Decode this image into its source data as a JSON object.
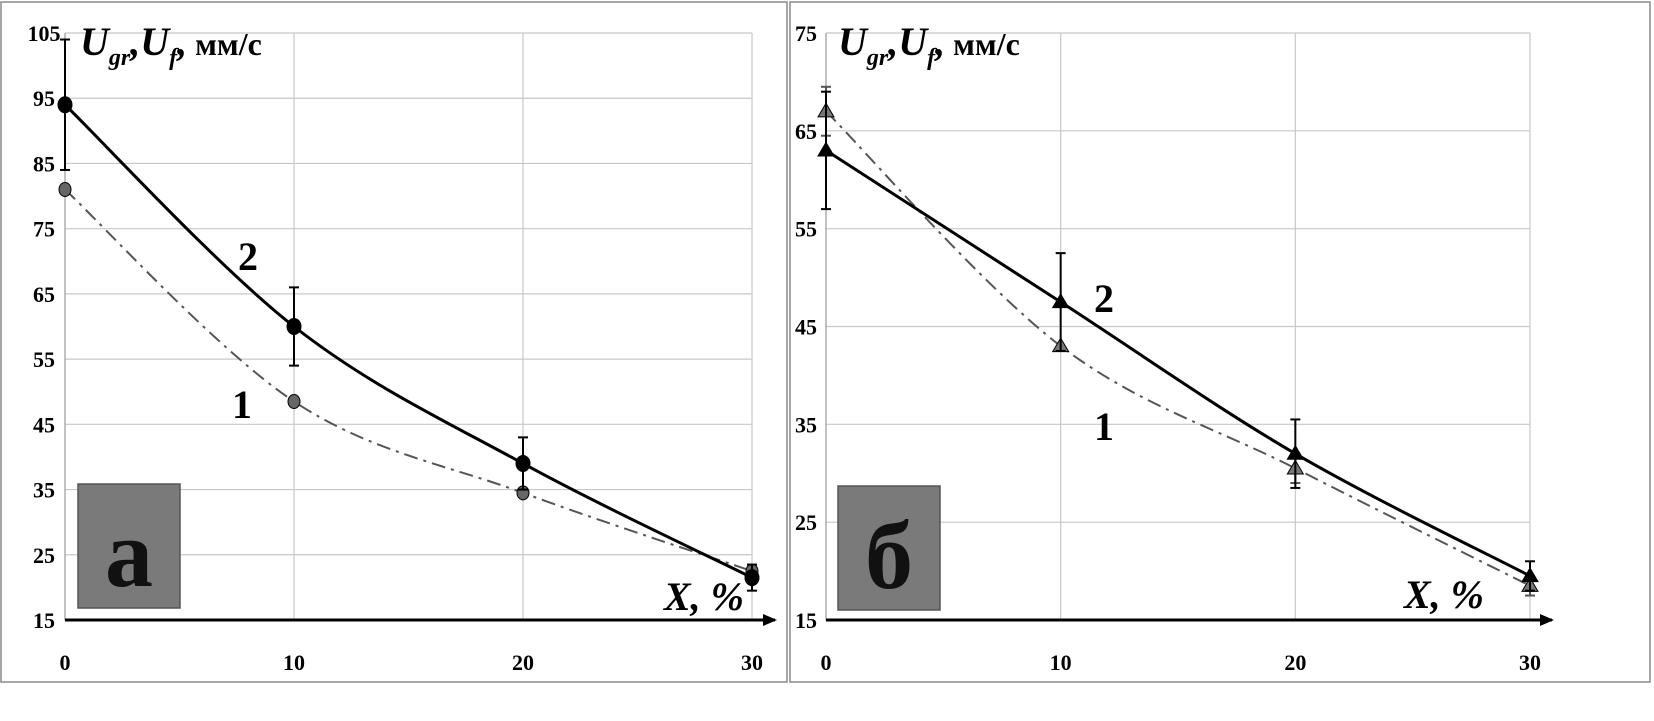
{
  "chart_data": [
    {
      "type": "line",
      "panel_label": "а",
      "ylabel_parts": [
        "U",
        "gr",
        ",U",
        "f",
        ",",
        " мм/с"
      ],
      "xlabel": "X, %",
      "x": [
        0,
        10,
        20,
        30
      ],
      "xlim": [
        0,
        30
      ],
      "ylim": [
        15,
        105
      ],
      "yticks": [
        15,
        25,
        35,
        45,
        55,
        65,
        75,
        85,
        95,
        105
      ],
      "xticks": [
        0,
        10,
        20,
        30
      ],
      "grid": true,
      "marker": "circle",
      "series": [
        {
          "name": "1",
          "style": "dash-dot",
          "color": "#555555",
          "values": [
            81,
            48.5,
            34.5,
            22.5
          ],
          "err": null
        },
        {
          "name": "2",
          "style": "solid",
          "color": "#000000",
          "values": [
            94,
            60,
            39,
            21.5
          ],
          "err": [
            10,
            6,
            4,
            2
          ]
        }
      ]
    },
    {
      "type": "line",
      "panel_label": "б",
      "ylabel_parts": [
        "U",
        "gr",
        ",U",
        "f",
        ",",
        " мм/с"
      ],
      "xlabel": "X, %",
      "x": [
        0,
        10,
        20,
        30
      ],
      "xlim": [
        0,
        30
      ],
      "ylim": [
        15,
        75
      ],
      "yticks": [
        15,
        25,
        35,
        45,
        55,
        65,
        75
      ],
      "xticks": [
        0,
        10,
        20,
        30
      ],
      "grid": true,
      "marker": "triangle",
      "series": [
        {
          "name": "1",
          "style": "dash-dot",
          "color": "#555555",
          "values": [
            67,
            43,
            30.5,
            18.5
          ],
          "err": [
            2.5,
            0,
            1.5,
            1
          ]
        },
        {
          "name": "2",
          "style": "solid",
          "color": "#000000",
          "values": [
            63,
            47.5,
            32,
            19.5
          ],
          "err": [
            6,
            5,
            3.5,
            1.5
          ]
        }
      ]
    }
  ]
}
